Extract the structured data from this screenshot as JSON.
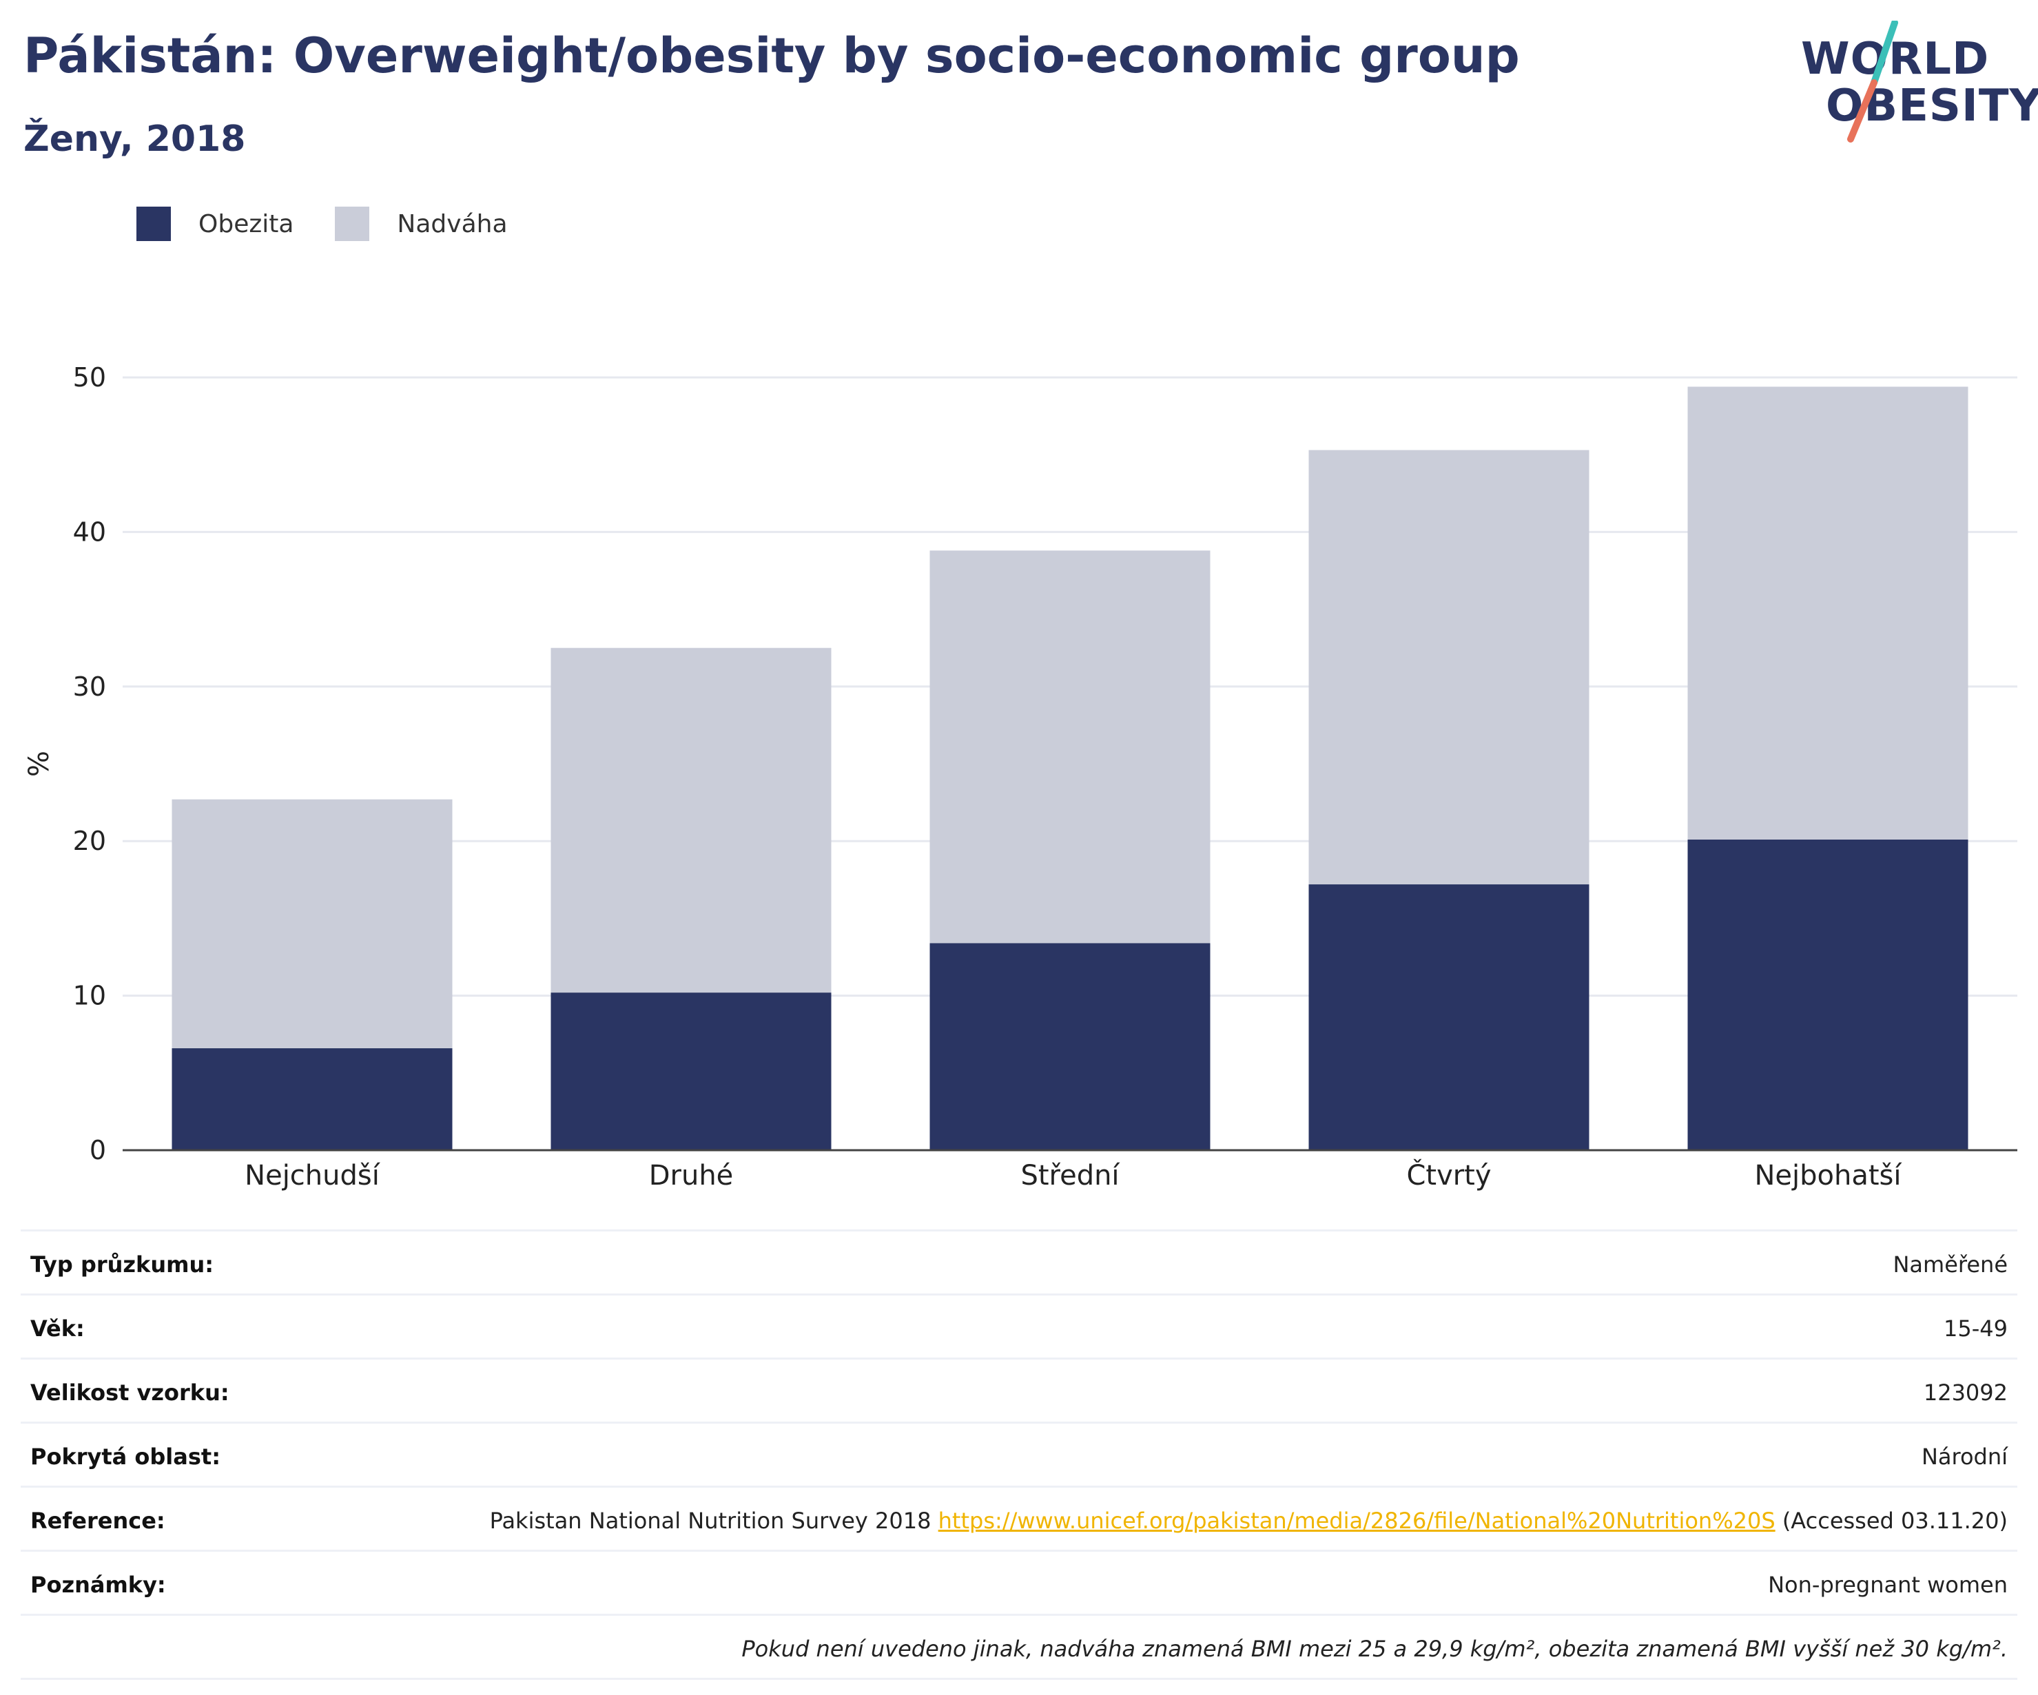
{
  "header": {
    "title": "Pákistán: Overweight/obesity by socio-economic group",
    "subtitle": "Ženy, 2018"
  },
  "logo": {
    "line1": "WORLD",
    "line2": "OBESITY",
    "slash_colors": [
      "#3bbfb8",
      "#e8725a"
    ]
  },
  "colors": {
    "obesity": "#2a3563",
    "overweight": "#cacdd9",
    "text_dark": "#2a3563",
    "link": "#f0b400"
  },
  "legend": [
    {
      "label": "Obezita",
      "color": "#2a3563"
    },
    {
      "label": "Nadváha",
      "color": "#cacdd9"
    }
  ],
  "chart_data": {
    "type": "bar",
    "stacked": true,
    "categories": [
      "Nejchudší",
      "Druhé",
      "Střední",
      "Čtvrtý",
      "Nejbohatší"
    ],
    "series": [
      {
        "name": "Obezita",
        "values": [
          6.6,
          10.2,
          13.4,
          17.2,
          20.1
        ]
      },
      {
        "name": "Nadváha",
        "values": [
          16.1,
          22.3,
          25.4,
          28.1,
          29.3
        ]
      }
    ],
    "ylabel": "%",
    "ylim": [
      0,
      50
    ],
    "yticks": [
      0,
      10,
      20,
      30,
      40,
      50
    ],
    "grid": true,
    "legend_position": "top-left"
  },
  "meta": {
    "rows": [
      {
        "label": "Typ průzkumu:",
        "value": "Naměřené"
      },
      {
        "label": "Věk:",
        "value": "15-49"
      },
      {
        "label": "Velikost vzorku:",
        "value": "123092"
      },
      {
        "label": "Pokrytá oblast:",
        "value": "Národní"
      }
    ],
    "reference": {
      "label": "Reference:",
      "text_before": "Pakistan National Nutrition Survey 2018 ",
      "link": "https://www.unicef.org/pakistan/media/2826/file/National%20Nutrition%20S",
      "text_after": " (Accessed 03.11.20)"
    },
    "notes": {
      "label": "Poznámky:",
      "value": "Non-pregnant women"
    },
    "footnote": "Pokud není uvedeno jinak, nadváha znamená BMI mezi 25 a 29,9 kg/m², obezita znamená BMI vyšší než 30 kg/m²."
  }
}
